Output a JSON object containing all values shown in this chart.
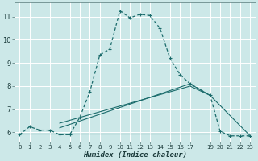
{
  "xlabel": "Humidex (Indice chaleur)",
  "bg_color": "#cce8e8",
  "grid_color": "#ffffff",
  "line_color": "#1a6b6b",
  "xlim": [
    -0.5,
    23.5
  ],
  "ylim": [
    5.6,
    11.6
  ],
  "xtick_positions": [
    0,
    1,
    2,
    3,
    4,
    5,
    6,
    7,
    8,
    9,
    10,
    11,
    12,
    13,
    14,
    15,
    16,
    17,
    19,
    20,
    21,
    22,
    23
  ],
  "xtick_labels": [
    "0",
    "1",
    "2",
    "3",
    "4",
    "5",
    "6",
    "7",
    "8",
    "9",
    "10",
    "11",
    "12",
    "13",
    "14",
    "15",
    "16",
    "17",
    "19",
    "20",
    "21",
    "22",
    "23"
  ],
  "ytick_positions": [
    6,
    7,
    8,
    9,
    10,
    11
  ],
  "ytick_labels": [
    "6",
    "7",
    "8",
    "9",
    "10",
    "11"
  ],
  "series1_x": [
    0,
    1,
    2,
    3,
    4,
    5,
    6,
    7,
    8,
    9,
    10,
    11,
    12,
    13,
    14,
    15,
    16,
    17,
    19,
    20,
    21,
    22,
    23
  ],
  "series1_y": [
    5.9,
    6.25,
    6.1,
    6.1,
    5.9,
    5.9,
    6.65,
    7.75,
    9.35,
    9.6,
    11.25,
    10.95,
    11.1,
    11.05,
    10.5,
    9.2,
    8.5,
    8.1,
    7.6,
    6.05,
    5.85,
    5.85,
    5.85
  ],
  "series2_x": [
    0,
    4,
    17,
    23
  ],
  "series2_y": [
    5.95,
    5.95,
    5.95,
    5.95
  ],
  "series3_x": [
    4,
    17,
    19
  ],
  "series3_y": [
    6.2,
    8.1,
    7.6
  ],
  "series4_x": [
    4,
    17,
    19,
    23
  ],
  "series4_y": [
    6.4,
    8.0,
    7.6,
    5.85
  ]
}
